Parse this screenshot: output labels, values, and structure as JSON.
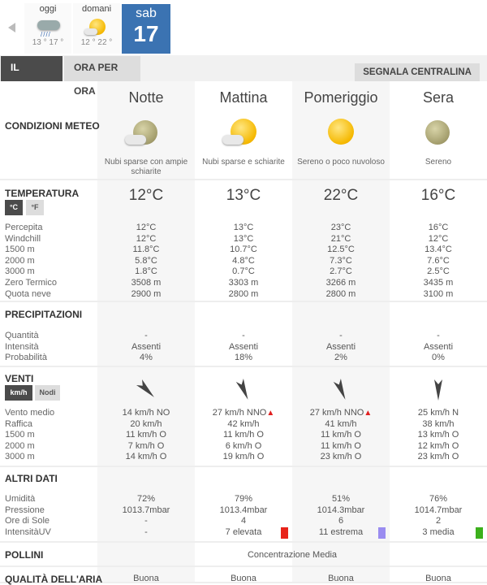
{
  "days": [
    {
      "label": "oggi",
      "temps": "13 ° 17 °",
      "icon": "rain-cloud-icon"
    },
    {
      "label": "domani",
      "temps": "12 ° 22 °",
      "icon": "sun-cloud-icon"
    }
  ],
  "selected_day": {
    "weekday": "sab",
    "day": "17"
  },
  "tabs": {
    "day": "IL GIORNO",
    "hourly": "ORA PER ORA",
    "report": "SEGNALA CENTRALINA"
  },
  "periods": [
    {
      "name": "Notte",
      "desc": "Nubi sparse con ampie schiarite",
      "icon": "moon-cloud-icon"
    },
    {
      "name": "Mattina",
      "desc": "Nubi sparse e schiarite",
      "icon": "sun-cloud-icon"
    },
    {
      "name": "Pomeriggio",
      "desc": "Sereno o poco nuvoloso",
      "icon": "sun-icon"
    },
    {
      "name": "Sera",
      "desc": "Sereno",
      "icon": "moon-icon"
    }
  ],
  "conditions": {
    "title": "CONDIZIONI METEO"
  },
  "temperature": {
    "title": "TEMPERATURA",
    "unit_c": "°C",
    "unit_f": "°F",
    "selected_unit": "°C",
    "main": [
      "12°C",
      "13°C",
      "22°C",
      "16°C"
    ],
    "labels": [
      "Percepita",
      "Windchill",
      "1500 m",
      "2000 m",
      "3000 m",
      "Zero Termico",
      "Quota neve"
    ],
    "values": [
      [
        "12°C",
        "12°C",
        "11.8°C",
        "5.8°C",
        "1.8°C",
        "3508 m",
        "2900 m"
      ],
      [
        "13°C",
        "13°C",
        "10.7°C",
        "4.8°C",
        "0.7°C",
        "3303 m",
        "2800 m"
      ],
      [
        "23°C",
        "21°C",
        "12.5°C",
        "7.3°C",
        "2.7°C",
        "3266 m",
        "2800 m"
      ],
      [
        "16°C",
        "12°C",
        "13.4°C",
        "7.6°C",
        "2.5°C",
        "3435 m",
        "3100 m"
      ]
    ]
  },
  "precipitation": {
    "title": "PRECIPITAZIONI",
    "labels": [
      "Quantità",
      "Intensità",
      "Probabilità"
    ],
    "values": [
      [
        "-",
        "Assenti",
        "4%"
      ],
      [
        "-",
        "Assenti",
        "18%"
      ],
      [
        "-",
        "Assenti",
        "2%"
      ],
      [
        "-",
        "Assenti",
        "0%"
      ]
    ]
  },
  "wind": {
    "title": "VENTI",
    "unit_kmh": "km/h",
    "unit_knots": "Nodi",
    "selected_unit": "km/h",
    "directions_deg": [
      315,
      337,
      337,
      0
    ],
    "labels": [
      "Vento medio",
      "Raffica",
      "1500 m",
      "2000 m",
      "3000 m"
    ],
    "warning": [
      false,
      true,
      true,
      false
    ],
    "values": [
      [
        "14 km/h  NO",
        "20 km/h",
        "11 km/h O",
        "7 km/h O",
        "14 km/h O"
      ],
      [
        "27 km/h  NNO",
        "42 km/h",
        "11 km/h O",
        "6 km/h O",
        "19 km/h O"
      ],
      [
        "27 km/h  NNO",
        "41 km/h",
        "11 km/h O",
        "11 km/h O",
        "23 km/h O"
      ],
      [
        "25 km/h N",
        "38 km/h",
        "13 km/h O",
        "12 km/h O",
        "23 km/h O"
      ]
    ]
  },
  "other": {
    "title": "ALTRI DATI",
    "labels": [
      "Umidità",
      "Pressione",
      "Ore di Sole",
      "IntensitàUV"
    ],
    "values": [
      [
        "72%",
        "1013.7mbar",
        "-",
        "-"
      ],
      [
        "79%",
        "1013.4mbar",
        "4",
        "7 elevata"
      ],
      [
        "51%",
        "1014.3mbar",
        "6",
        "11 estrema"
      ],
      [
        "76%",
        "1014.7mbar",
        "2",
        "3 media"
      ]
    ],
    "uv_colors": [
      null,
      "#e8231a",
      "#9a8cf0",
      "#3cb01c"
    ]
  },
  "pollen": {
    "title": "POLLINI",
    "value": "Concentrazione Media"
  },
  "air": {
    "title": "QUALITÀ DELL'ARIA",
    "values": [
      "Buona",
      "Buona",
      "Buona",
      "Buona"
    ]
  }
}
